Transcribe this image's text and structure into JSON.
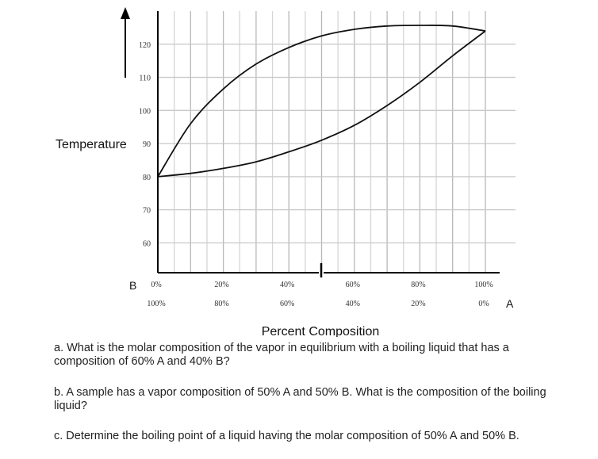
{
  "chart_data": {
    "type": "line",
    "ylabel": "Temperature",
    "xlabel": "Percent Composition",
    "y_ticks": [
      "120",
      "110",
      "100",
      "90",
      "80",
      "70",
      "60"
    ],
    "x_ticks_A": [
      "0%",
      "20%",
      "40%",
      "60%",
      "80%",
      "100%"
    ],
    "x_ticks_B": [
      "100%",
      "80%",
      "60%",
      "40%",
      "20%",
      "0%"
    ],
    "x_end_left": "B",
    "x_end_right": "A",
    "xlim": [
      0,
      100
    ],
    "ylim": [
      51,
      130
    ],
    "grid": true,
    "series": [
      {
        "x": [
          0,
          10,
          20,
          30,
          40,
          50,
          60,
          70,
          80,
          90,
          100
        ],
        "y": [
          80,
          96,
          106.5,
          114,
          119,
          122.5,
          124.5,
          125.5,
          125.7,
          125.5,
          124
        ]
      },
      {
        "x": [
          0,
          10,
          20,
          30,
          40,
          50,
          60,
          70,
          80,
          90,
          100
        ],
        "y": [
          80,
          81,
          82.5,
          84.5,
          87.5,
          91,
          95.5,
          101.5,
          108.5,
          116.5,
          124
        ]
      }
    ]
  },
  "questions": {
    "a": "a. What is the molar composition of the vapor in equilibrium with a boiling liquid that has a composition of 60% A and 40% B?",
    "b": "b. A sample has a vapor composition of 50% A and 50% B.  What is the composition of the boiling liquid?",
    "c": "c. Determine the boiling point of a liquid having the molar composition of 50% A and 50% B."
  }
}
